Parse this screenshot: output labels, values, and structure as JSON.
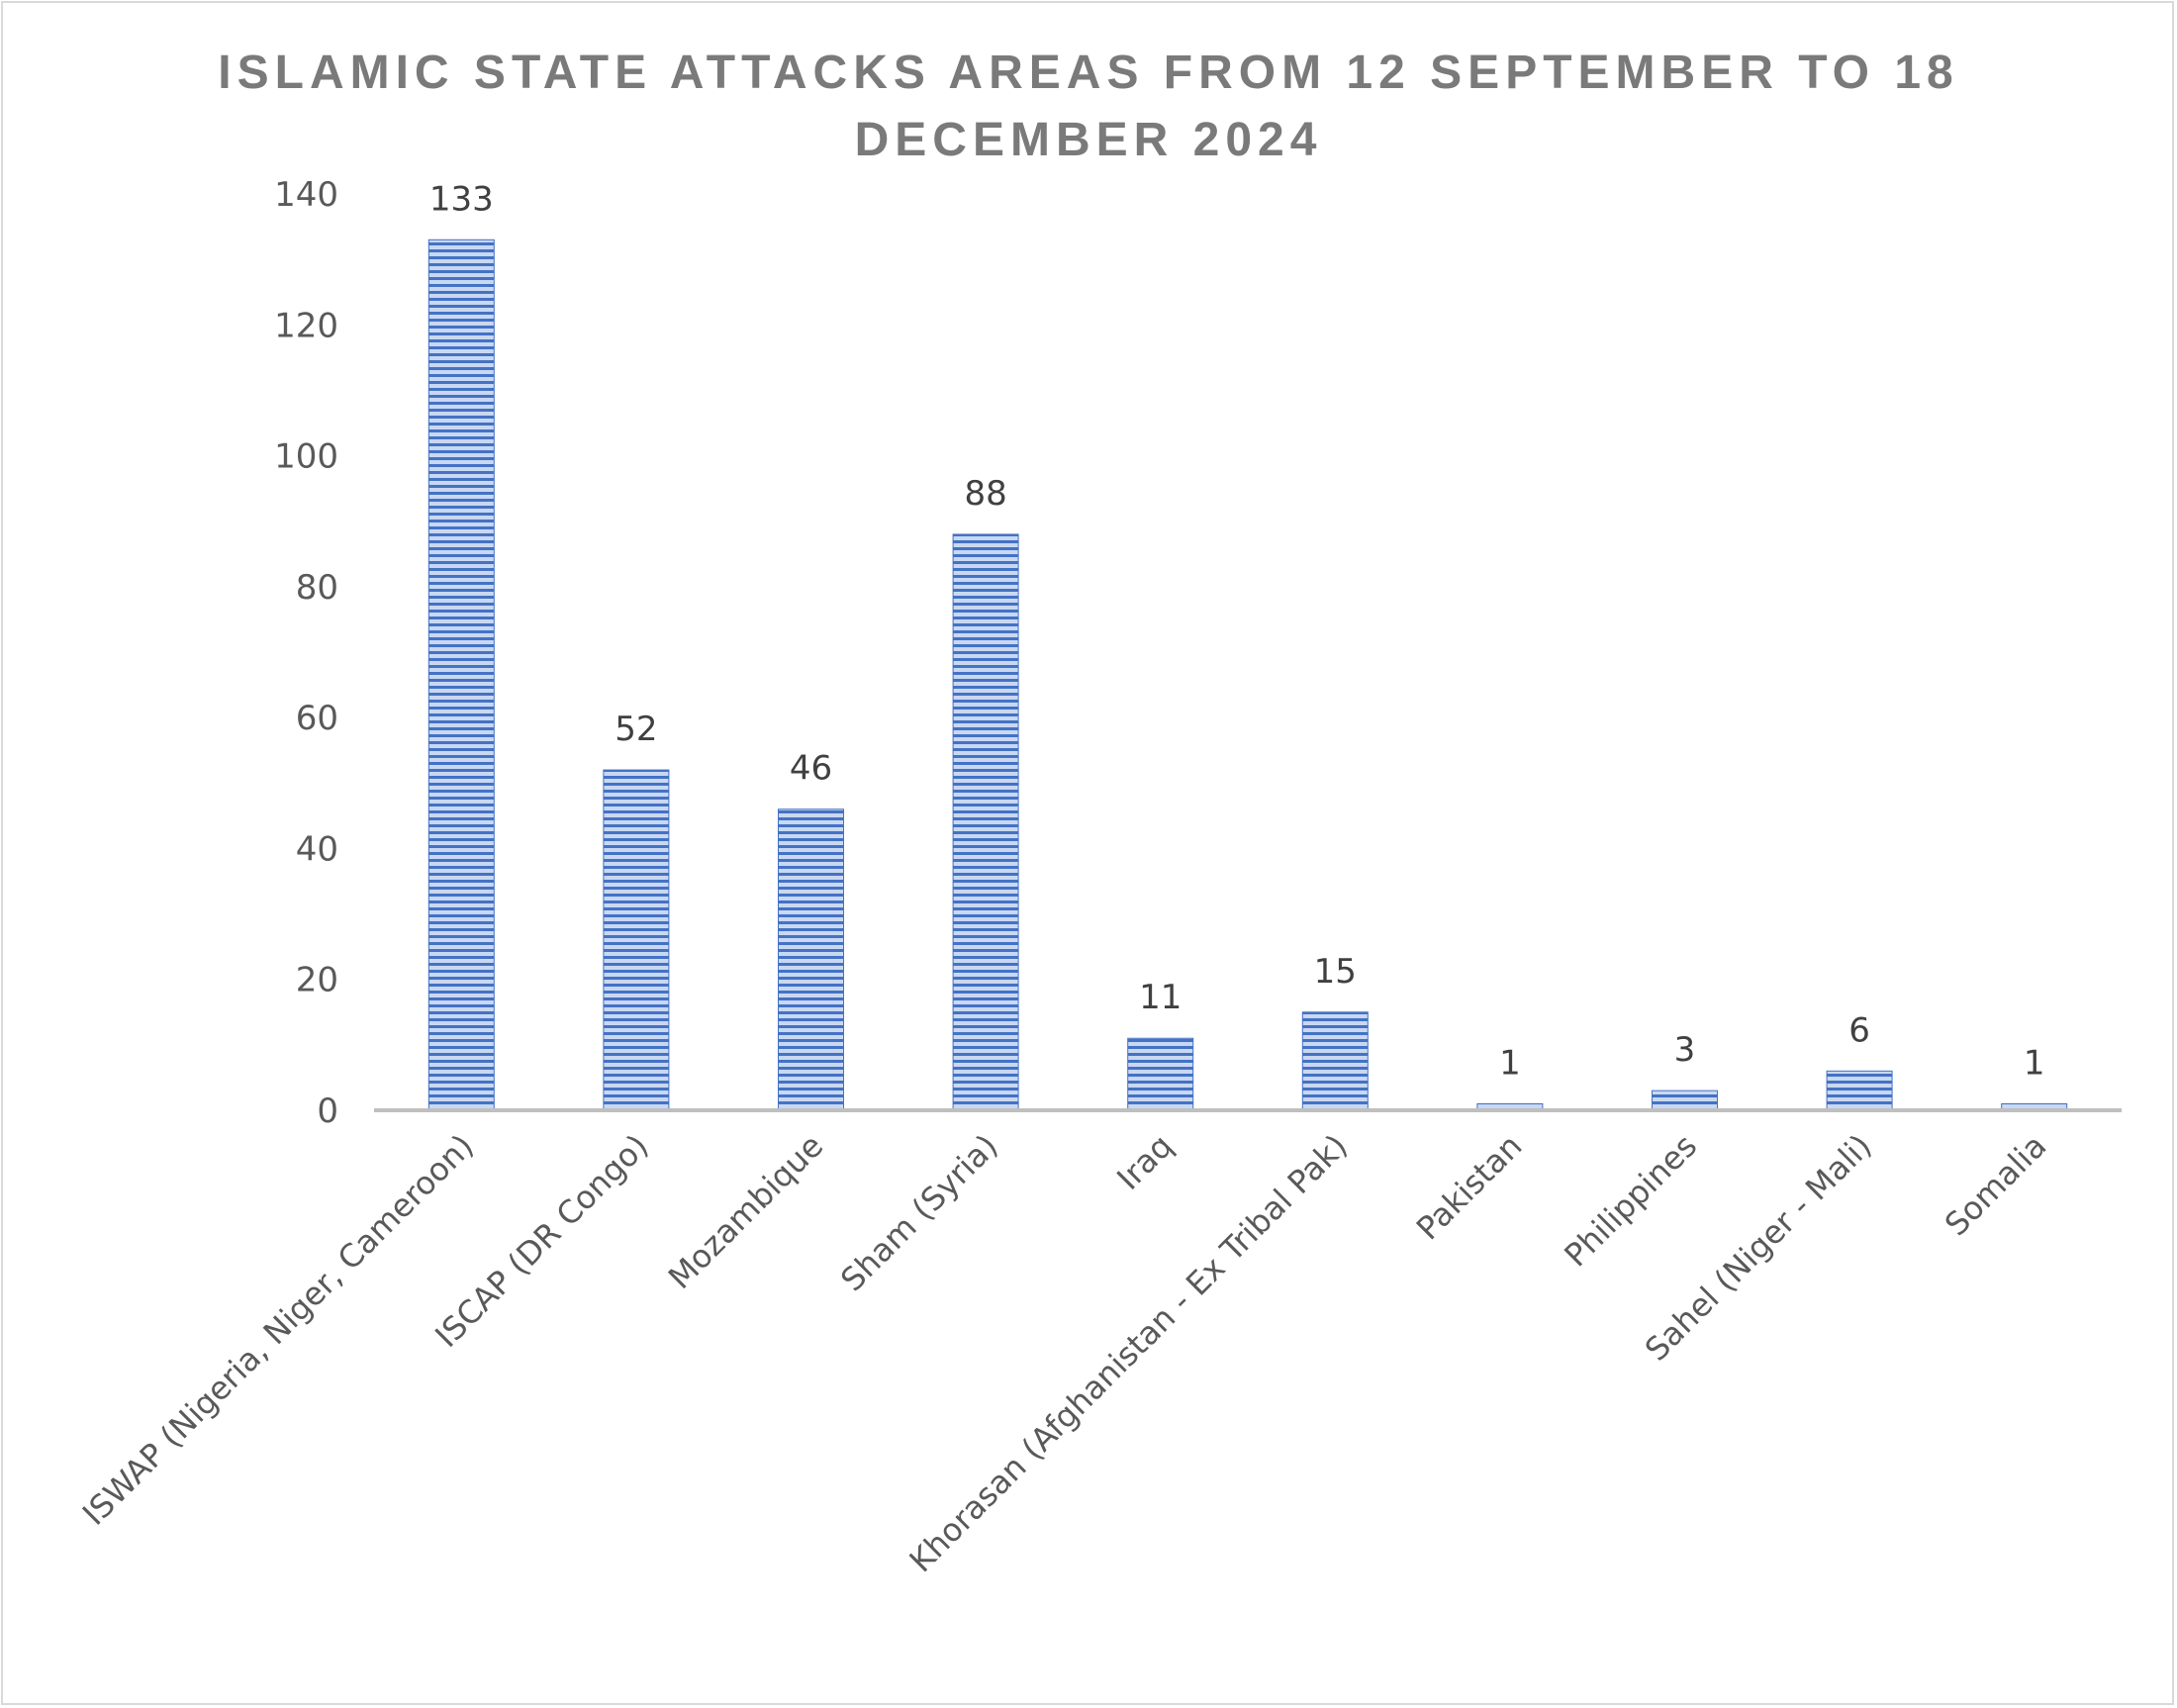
{
  "chart_data": {
    "type": "bar",
    "title": "ISLAMIC STATE ATTACKS AREAS FROM 12 SEPTEMBER TO 18 DECEMBER 2024",
    "categories": [
      "ISWAP (Nigeria, Niger, Cameroon)",
      "ISCAP (DR Congo)",
      "Mozambique",
      "Sham (Syria)",
      "Iraq",
      "Khorasan (Afghanistan - Ex Tribal Pak)",
      "Pakistan",
      "Philippines",
      "Sahel (Niger - Mali)",
      "Somalia"
    ],
    "values": [
      133,
      52,
      46,
      88,
      11,
      15,
      1,
      3,
      6,
      1
    ],
    "ylim": [
      0,
      140
    ],
    "yticks": [
      0,
      20,
      40,
      60,
      80,
      100,
      120,
      140
    ],
    "xlabel": "",
    "ylabel": "",
    "grid": false,
    "legend": "none",
    "data_labels": true,
    "colors": {
      "bar": "#4472c4",
      "bar_light": "#c9d8f2",
      "axis": "#bfbfbf",
      "title": "#7a7a7a"
    }
  }
}
